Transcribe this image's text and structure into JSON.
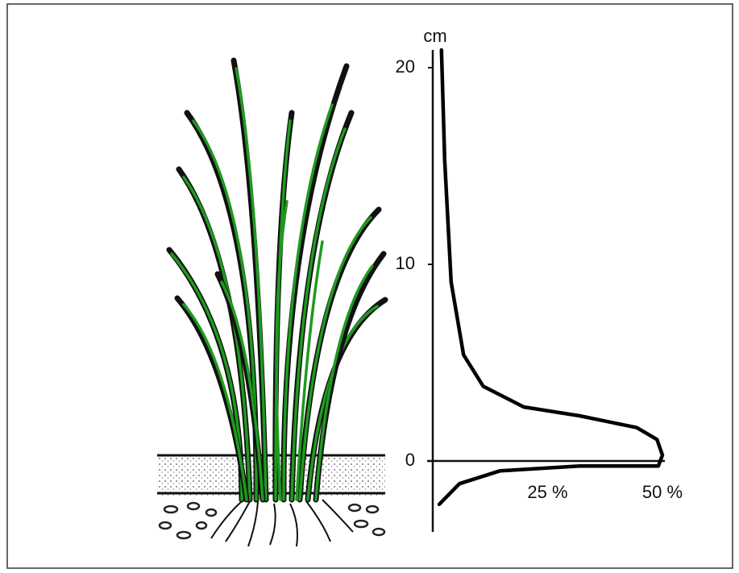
{
  "chart_data": {
    "type": "line",
    "y_label": "cm",
    "x": [
      1.9,
      2.6,
      4.0,
      6.7,
      11,
      19.8,
      32,
      44.4,
      48.8,
      50,
      49.1,
      32,
      14.6,
      5.8,
      1.4
    ],
    "values": [
      20.9,
      15.3,
      9.1,
      5.4,
      3.8,
      2.75,
      2.3,
      1.7,
      1.1,
      0.3,
      -0.25,
      -0.25,
      -0.5,
      -1.15,
      -2.2
    ],
    "color": "#000000",
    "xlim": [
      0,
      55
    ],
    "ylim": [
      -3.6,
      20.9
    ],
    "xticks": [
      {
        "value": 25,
        "label": "25 %"
      },
      {
        "value": 50,
        "label": "50 %"
      }
    ],
    "yticks": [
      0,
      10,
      20
    ]
  }
}
